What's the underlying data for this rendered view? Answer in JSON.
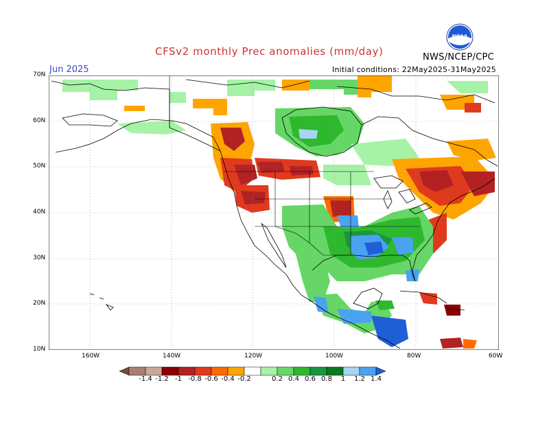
{
  "header": {
    "title": "CFSv2 monthly Prec anomalies (mm/day)",
    "month": "Jun 2025",
    "initial_conditions": "Initial conditions: 22May2025-31May2025",
    "agency": "NWS/NCEP/CPC",
    "logo_text": "NOAA"
  },
  "axes": {
    "lat_labels": [
      "70N",
      "60N",
      "50N",
      "40N",
      "30N",
      "20N",
      "10N"
    ],
    "lon_labels": [
      "160W",
      "140W",
      "120W",
      "100W",
      "80W",
      "60W"
    ]
  },
  "colorbar": {
    "labels": [
      "-1.4",
      "-1.2",
      "-1",
      "-0.8",
      "-0.6",
      "-0.4",
      "-0.2",
      "0.2",
      "0.4",
      "0.6",
      "0.8",
      "1",
      "1.2",
      "1.4"
    ],
    "colors": [
      "#7b4a3a",
      "#a87f72",
      "#c8a89a",
      "#8b0000",
      "#b22222",
      "#e03a1e",
      "#ff6a00",
      "#ffa500",
      "#ffffff",
      "#a6f2a6",
      "#66d766",
      "#2eb82e",
      "#1a9641",
      "#0b7a1e",
      "#a6d4f2",
      "#4aa3f0",
      "#1f5fd6"
    ]
  }
}
